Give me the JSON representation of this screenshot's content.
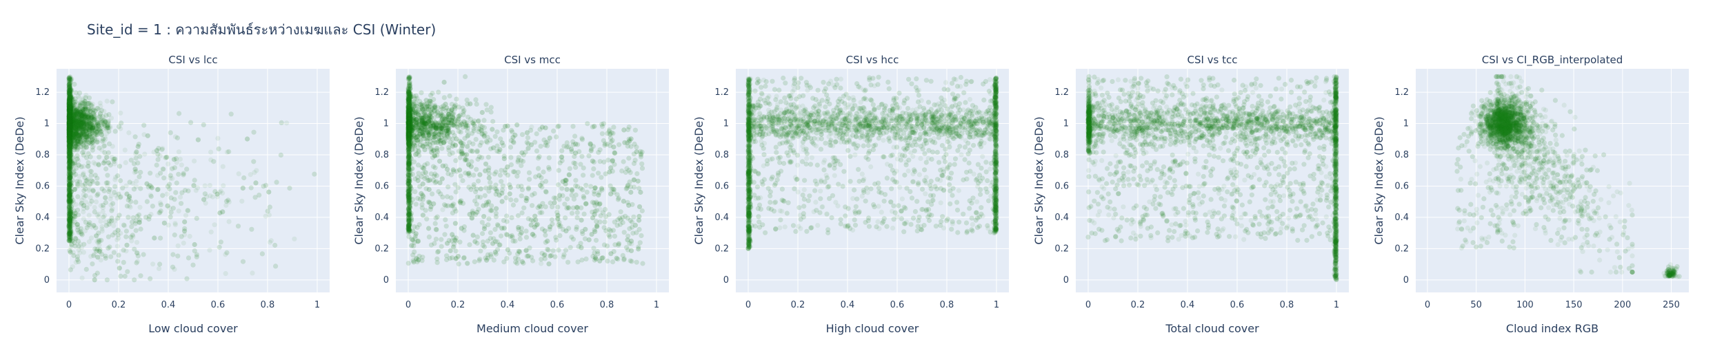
{
  "title": "Site_id = 1 : ความสัมพันธ์ระหว่างเมฆและ CSI (Winter)",
  "colors": {
    "marker": "#1a7a1a",
    "plot_bg": "#e5ecf6",
    "grid": "#ffffff",
    "text": "#2a3f5f"
  },
  "chart_data": [
    {
      "type": "scatter",
      "title": "CSI vs lcc",
      "xlabel": "Low cloud cover",
      "ylabel": "Clear Sky Index (DeDe)",
      "xlim": [
        -0.05,
        1.05
      ],
      "ylim": [
        -0.08,
        1.35
      ],
      "xticks": [
        0,
        0.2,
        0.4,
        0.6,
        0.8,
        1
      ],
      "xtick_labels": [
        "0",
        "0.2",
        "0.4",
        "0.6",
        "0.8",
        "1"
      ],
      "yticks": [
        0,
        0.2,
        0.4,
        0.6,
        0.8,
        1,
        1.2
      ],
      "ytick_labels": [
        "0",
        "0.2",
        "0.4",
        "0.6",
        "0.8",
        "1",
        "1.2"
      ],
      "marker_opacity": 0.08,
      "point_count": 5000,
      "note": "Dense vertical band at x=0 spanning y 0.25-1.3; cluster near (0-0.1, 1.0); sparse scatter toward x=1"
    },
    {
      "type": "scatter",
      "title": "CSI vs mcc",
      "xlabel": "Medium cloud cover",
      "ylabel": "Clear Sky Index (DeDe)",
      "xlim": [
        -0.05,
        1.05
      ],
      "ylim": [
        -0.08,
        1.35
      ],
      "xticks": [
        0,
        0.2,
        0.4,
        0.6,
        0.8,
        1
      ],
      "xtick_labels": [
        "0",
        "0.2",
        "0.4",
        "0.6",
        "0.8",
        "1"
      ],
      "yticks": [
        0,
        0.2,
        0.4,
        0.6,
        0.8,
        1,
        1.2
      ],
      "ytick_labels": [
        "0",
        "0.2",
        "0.4",
        "0.6",
        "0.8",
        "1",
        "1.2"
      ],
      "marker_opacity": 0.08,
      "point_count": 5000,
      "note": "Dense band at x=0; concentration around y=1.0 for x<0.3; broad scatter"
    },
    {
      "type": "scatter",
      "title": "CSI vs hcc",
      "xlabel": "High cloud cover",
      "ylabel": "Clear Sky Index (DeDe)",
      "xlim": [
        -0.05,
        1.05
      ],
      "ylim": [
        -0.08,
        1.35
      ],
      "xticks": [
        0,
        0.2,
        0.4,
        0.6,
        0.8,
        1
      ],
      "xtick_labels": [
        "0",
        "0.2",
        "0.4",
        "0.6",
        "0.8",
        "1"
      ],
      "yticks": [
        0,
        0.2,
        0.4,
        0.6,
        0.8,
        1,
        1.2
      ],
      "ytick_labels": [
        "0",
        "0.2",
        "0.4",
        "0.6",
        "0.8",
        "1",
        "1.2"
      ],
      "marker_opacity": 0.08,
      "point_count": 5000,
      "note": "Dense bands at x=0 and x=1; horizontal band at y=1.0 across all x"
    },
    {
      "type": "scatter",
      "title": "CSI vs tcc",
      "xlabel": "Total cloud cover",
      "ylabel": "Clear Sky Index (DeDe)",
      "xlim": [
        -0.05,
        1.05
      ],
      "ylim": [
        -0.08,
        1.35
      ],
      "xticks": [
        0,
        0.2,
        0.4,
        0.6,
        0.8,
        1
      ],
      "xtick_labels": [
        "0",
        "0.2",
        "0.4",
        "0.6",
        "0.8",
        "1"
      ],
      "yticks": [
        0,
        0.2,
        0.4,
        0.6,
        0.8,
        1,
        1.2
      ],
      "ytick_labels": [
        "0",
        "0.2",
        "0.4",
        "0.6",
        "0.8",
        "1",
        "1.2"
      ],
      "marker_opacity": 0.08,
      "point_count": 5000,
      "note": "Horizontal band at y=1.0; dense vertical band at x=1 spanning 0-1.3"
    },
    {
      "type": "scatter",
      "title": "CSI vs CI_RGB_interpolated",
      "xlabel": "Cloud index RGB",
      "ylabel": "Clear Sky Index (DeDe)",
      "xlim": [
        -12,
        268
      ],
      "ylim": [
        -0.08,
        1.35
      ],
      "xticks": [
        0,
        50,
        100,
        150,
        200,
        250
      ],
      "xtick_labels": [
        "0",
        "50",
        "100",
        "150",
        "200",
        "250"
      ],
      "yticks": [
        0,
        0.2,
        0.4,
        0.6,
        0.8,
        1,
        1.2
      ],
      "ytick_labels": [
        "0",
        "0.2",
        "0.4",
        "0.6",
        "0.8",
        "1",
        "1.2"
      ],
      "marker_opacity": 0.08,
      "point_count": 3500,
      "note": "Dense cluster near x=60-100, y=0.9-1.1; decreasing tail toward x=200; isolated points near (250, 0.02)"
    }
  ]
}
